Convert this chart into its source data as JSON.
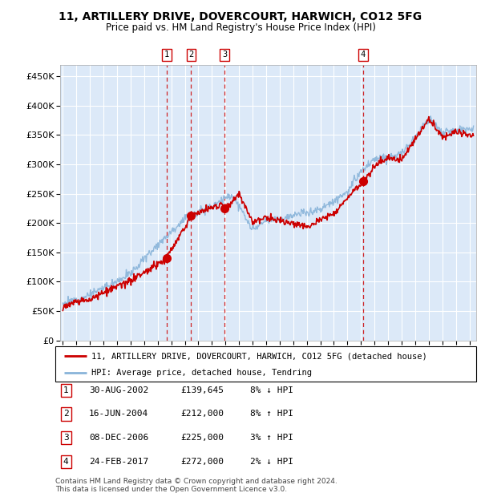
{
  "title": "11, ARTILLERY DRIVE, DOVERCOURT, HARWICH, CO12 5FG",
  "subtitle": "Price paid vs. HM Land Registry's House Price Index (HPI)",
  "ylabel_ticks": [
    "£0",
    "£50K",
    "£100K",
    "£150K",
    "£200K",
    "£250K",
    "£300K",
    "£350K",
    "£400K",
    "£450K"
  ],
  "ytick_vals": [
    0,
    50000,
    100000,
    150000,
    200000,
    250000,
    300000,
    350000,
    400000,
    450000
  ],
  "ylim": [
    0,
    470000
  ],
  "xlim_start": 1994.8,
  "xlim_end": 2025.5,
  "background_color": "#dce9f8",
  "plot_bg": "#dce9f8",
  "grid_color": "#ffffff",
  "sale_dates": [
    2002.66,
    2004.46,
    2006.93,
    2017.15
  ],
  "sale_prices": [
    139645,
    212000,
    225000,
    272000
  ],
  "sale_labels": [
    "1",
    "2",
    "3",
    "4"
  ],
  "legend_line1": "11, ARTILLERY DRIVE, DOVERCOURT, HARWICH, CO12 5FG (detached house)",
  "legend_line2": "HPI: Average price, detached house, Tendring",
  "table_data": [
    [
      "1",
      "30-AUG-2002",
      "£139,645",
      "8% ↓ HPI"
    ],
    [
      "2",
      "16-JUN-2004",
      "£212,000",
      "8% ↑ HPI"
    ],
    [
      "3",
      "08-DEC-2006",
      "£225,000",
      "3% ↑ HPI"
    ],
    [
      "4",
      "24-FEB-2017",
      "£272,000",
      "2% ↓ HPI"
    ]
  ],
  "footer": "Contains HM Land Registry data © Crown copyright and database right 2024.\nThis data is licensed under the Open Government Licence v3.0.",
  "red_line_color": "#cc0000",
  "blue_line_color": "#89b4d9",
  "sale_marker_color": "#cc0000",
  "dashed_line_color": "#cc0000"
}
